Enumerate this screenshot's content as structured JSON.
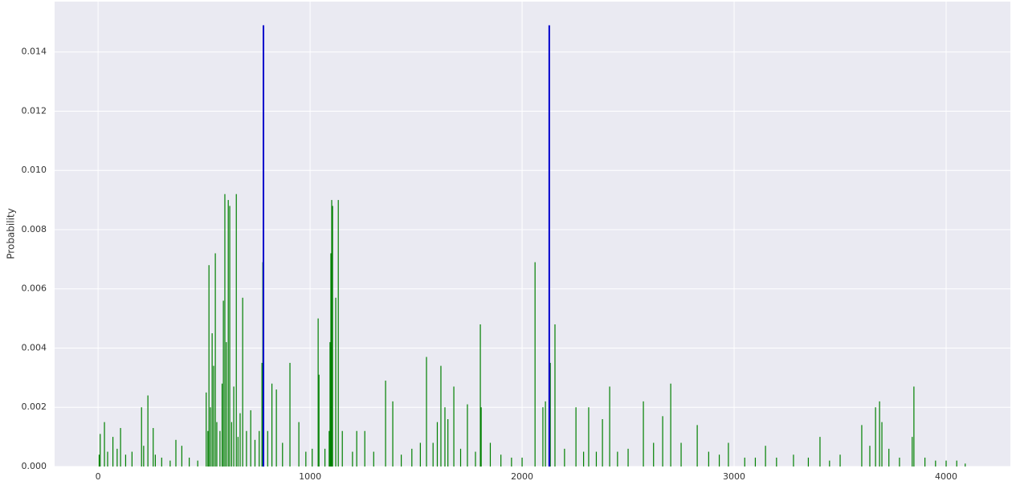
{
  "chart_data": {
    "type": "bar",
    "y_label": "Probability",
    "xlim": [
      -205,
      4303
    ],
    "ylim": [
      0,
      0.0157
    ],
    "xticks": [
      0,
      1000,
      2000,
      3000,
      4000
    ],
    "yticks": [
      {
        "value": 0,
        "label": "0.000"
      },
      {
        "value": 0.002,
        "label": "0.002"
      },
      {
        "value": 0.004,
        "label": "0.004"
      },
      {
        "value": 0.006,
        "label": "0.006"
      },
      {
        "value": 0.008,
        "label": "0.008"
      },
      {
        "value": 0.01,
        "label": "0.010"
      },
      {
        "value": 0.012,
        "label": "0.012"
      },
      {
        "value": 0.014,
        "label": "0.014"
      }
    ],
    "grid": true,
    "series": [
      {
        "color": "#008000",
        "x": [
          5,
          10,
          30,
          45,
          70,
          90,
          106,
          130,
          160,
          205,
          215,
          235,
          260,
          270,
          300,
          340,
          367,
          395,
          430,
          470,
          510,
          518,
          523,
          530,
          538,
          545,
          553,
          560,
          575,
          585,
          591,
          598,
          605,
          614,
          621,
          630,
          640,
          652,
          660,
          670,
          682,
          700,
          720,
          740,
          760,
          773,
          777,
          800,
          820,
          841,
          870,
          905,
          947,
          980,
          1010,
          1038,
          1042,
          1070,
          1090,
          1094,
          1098,
          1102,
          1106,
          1121,
          1133,
          1152,
          1200,
          1220,
          1258,
          1300,
          1356,
          1390,
          1430,
          1480,
          1520,
          1549,
          1580,
          1600,
          1617,
          1636,
          1650,
          1678,
          1710,
          1742,
          1780,
          1803,
          1807,
          1850,
          1900,
          1950,
          2000,
          2061,
          2098,
          2110,
          2133,
          2155,
          2200,
          2254,
          2290,
          2314,
          2350,
          2379,
          2413,
          2450,
          2500,
          2572,
          2620,
          2663,
          2701,
          2750,
          2826,
          2880,
          2930,
          2973,
          3050,
          3100,
          3148,
          3200,
          3280,
          3350,
          3405,
          3450,
          3500,
          3602,
          3640,
          3667,
          3686,
          3697,
          3730,
          3780,
          3840,
          3848,
          3900,
          3950,
          4000,
          4050,
          4090
        ],
        "values": [
          0.0004,
          0.0011,
          0.0015,
          0.0005,
          0.001,
          0.0006,
          0.0013,
          0.0004,
          0.0005,
          0.002,
          0.0007,
          0.0024,
          0.0013,
          0.0004,
          0.0003,
          0.0002,
          0.0009,
          0.0007,
          0.0003,
          0.0002,
          0.0025,
          0.0012,
          0.0068,
          0.002,
          0.0045,
          0.0034,
          0.0072,
          0.0015,
          0.0012,
          0.0028,
          0.0056,
          0.0092,
          0.0042,
          0.009,
          0.0088,
          0.0015,
          0.0027,
          0.0092,
          0.001,
          0.0018,
          0.0057,
          0.0012,
          0.0019,
          0.0009,
          0.0012,
          0.0035,
          0.0069,
          0.0012,
          0.0028,
          0.0026,
          0.0008,
          0.0035,
          0.0015,
          0.0005,
          0.0006,
          0.005,
          0.0031,
          0.0006,
          0.0012,
          0.0042,
          0.0072,
          0.009,
          0.0088,
          0.0057,
          0.009,
          0.0012,
          0.0005,
          0.0012,
          0.0012,
          0.0005,
          0.0029,
          0.0022,
          0.0004,
          0.0006,
          0.0008,
          0.0037,
          0.0008,
          0.0015,
          0.0034,
          0.002,
          0.0016,
          0.0027,
          0.0006,
          0.0021,
          0.0005,
          0.0048,
          0.002,
          0.0008,
          0.0004,
          0.0003,
          0.0003,
          0.0069,
          0.002,
          0.0022,
          0.0035,
          0.0048,
          0.0006,
          0.002,
          0.0005,
          0.002,
          0.0005,
          0.0016,
          0.0027,
          0.0005,
          0.0006,
          0.0022,
          0.0008,
          0.0017,
          0.0028,
          0.0008,
          0.0014,
          0.0005,
          0.0004,
          0.0008,
          0.0003,
          0.0003,
          0.0007,
          0.0003,
          0.0004,
          0.0003,
          0.001,
          0.0002,
          0.0004,
          0.0014,
          0.0007,
          0.002,
          0.0022,
          0.0015,
          0.0006,
          0.0003,
          0.001,
          0.0027,
          0.0003,
          0.0002,
          0.0002,
          0.0002,
          0.0001
        ]
      },
      {
        "color": "#0000cc",
        "x": [
          780,
          2128
        ],
        "values": [
          0.0149,
          0.0149
        ]
      }
    ]
  }
}
